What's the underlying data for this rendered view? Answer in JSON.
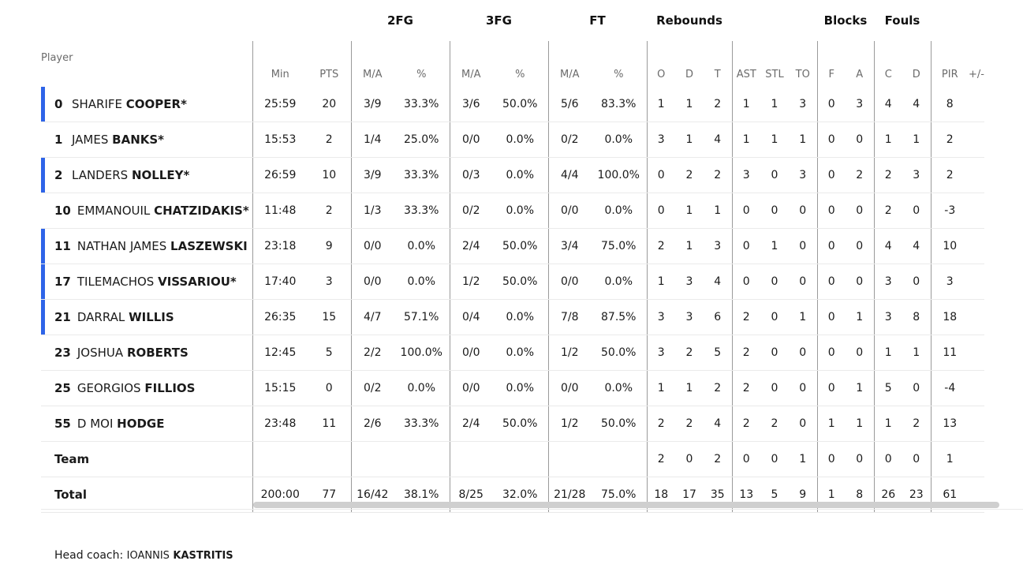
{
  "headers": {
    "player": "Player",
    "groups": {
      "fg2": "2FG",
      "fg3": "3FG",
      "ft": "FT",
      "rebounds": "Rebounds",
      "blocks": "Blocks",
      "fouls": "Fouls"
    },
    "cols": {
      "min": "Min",
      "pts": "PTS",
      "fg2_ma": "M/A",
      "fg2_pct": "%",
      "fg3_ma": "M/A",
      "fg3_pct": "%",
      "ft_ma": "M/A",
      "ft_pct": "%",
      "reb_o": "O",
      "reb_d": "D",
      "reb_t": "T",
      "ast": "AST",
      "stl": "STL",
      "to": "TO",
      "blk_f": "F",
      "blk_a": "A",
      "foul_c": "C",
      "foul_d": "D",
      "pir": "PIR",
      "pm": "+/-"
    }
  },
  "players": [
    {
      "num": "0",
      "first": "SHARIFE",
      "last": "COOPER*",
      "starter": true,
      "min": "25:59",
      "pts": "20",
      "fg2_ma": "3/9",
      "fg2_pct": "33.3%",
      "fg3_ma": "3/6",
      "fg3_pct": "50.0%",
      "ft_ma": "5/6",
      "ft_pct": "83.3%",
      "reb_o": "1",
      "reb_d": "1",
      "reb_t": "2",
      "ast": "1",
      "stl": "1",
      "to": "3",
      "blk_f": "0",
      "blk_a": "3",
      "foul_c": "4",
      "foul_d": "4",
      "pir": "8"
    },
    {
      "num": "1",
      "first": "JAMES",
      "last": "BANKS*",
      "starter": false,
      "min": "15:53",
      "pts": "2",
      "fg2_ma": "1/4",
      "fg2_pct": "25.0%",
      "fg3_ma": "0/0",
      "fg3_pct": "0.0%",
      "ft_ma": "0/2",
      "ft_pct": "0.0%",
      "reb_o": "3",
      "reb_d": "1",
      "reb_t": "4",
      "ast": "1",
      "stl": "1",
      "to": "1",
      "blk_f": "0",
      "blk_a": "0",
      "foul_c": "1",
      "foul_d": "1",
      "pir": "2"
    },
    {
      "num": "2",
      "first": "LANDERS",
      "last": "NOLLEY*",
      "starter": true,
      "min": "26:59",
      "pts": "10",
      "fg2_ma": "3/9",
      "fg2_pct": "33.3%",
      "fg3_ma": "0/3",
      "fg3_pct": "0.0%",
      "ft_ma": "4/4",
      "ft_pct": "100.0%",
      "reb_o": "0",
      "reb_d": "2",
      "reb_t": "2",
      "ast": "3",
      "stl": "0",
      "to": "3",
      "blk_f": "0",
      "blk_a": "2",
      "foul_c": "2",
      "foul_d": "3",
      "pir": "2"
    },
    {
      "num": "10",
      "first": "EMMANOUIL",
      "last": "CHATZIDAKIS*",
      "starter": false,
      "min": "11:48",
      "pts": "2",
      "fg2_ma": "1/3",
      "fg2_pct": "33.3%",
      "fg3_ma": "0/2",
      "fg3_pct": "0.0%",
      "ft_ma": "0/0",
      "ft_pct": "0.0%",
      "reb_o": "0",
      "reb_d": "1",
      "reb_t": "1",
      "ast": "0",
      "stl": "0",
      "to": "0",
      "blk_f": "0",
      "blk_a": "0",
      "foul_c": "2",
      "foul_d": "0",
      "pir": "-3"
    },
    {
      "num": "11",
      "first": "NATHAN JAMES",
      "last": "LASZEWSKI",
      "starter": true,
      "min": "23:18",
      "pts": "9",
      "fg2_ma": "0/0",
      "fg2_pct": "0.0%",
      "fg3_ma": "2/4",
      "fg3_pct": "50.0%",
      "ft_ma": "3/4",
      "ft_pct": "75.0%",
      "reb_o": "2",
      "reb_d": "1",
      "reb_t": "3",
      "ast": "0",
      "stl": "1",
      "to": "0",
      "blk_f": "0",
      "blk_a": "0",
      "foul_c": "4",
      "foul_d": "4",
      "pir": "10"
    },
    {
      "num": "17",
      "first": "TILEMACHOS",
      "last": "VISSARIOU*",
      "starter": true,
      "min": "17:40",
      "pts": "3",
      "fg2_ma": "0/0",
      "fg2_pct": "0.0%",
      "fg3_ma": "1/2",
      "fg3_pct": "50.0%",
      "ft_ma": "0/0",
      "ft_pct": "0.0%",
      "reb_o": "1",
      "reb_d": "3",
      "reb_t": "4",
      "ast": "0",
      "stl": "0",
      "to": "0",
      "blk_f": "0",
      "blk_a": "0",
      "foul_c": "3",
      "foul_d": "0",
      "pir": "3"
    },
    {
      "num": "21",
      "first": "DARRAL",
      "last": "WILLIS",
      "starter": true,
      "min": "26:35",
      "pts": "15",
      "fg2_ma": "4/7",
      "fg2_pct": "57.1%",
      "fg3_ma": "0/4",
      "fg3_pct": "0.0%",
      "ft_ma": "7/8",
      "ft_pct": "87.5%",
      "reb_o": "3",
      "reb_d": "3",
      "reb_t": "6",
      "ast": "2",
      "stl": "0",
      "to": "1",
      "blk_f": "0",
      "blk_a": "1",
      "foul_c": "3",
      "foul_d": "8",
      "pir": "18"
    },
    {
      "num": "23",
      "first": "JOSHUA",
      "last": "ROBERTS",
      "starter": false,
      "min": "12:45",
      "pts": "5",
      "fg2_ma": "2/2",
      "fg2_pct": "100.0%",
      "fg3_ma": "0/0",
      "fg3_pct": "0.0%",
      "ft_ma": "1/2",
      "ft_pct": "50.0%",
      "reb_o": "3",
      "reb_d": "2",
      "reb_t": "5",
      "ast": "2",
      "stl": "0",
      "to": "0",
      "blk_f": "0",
      "blk_a": "0",
      "foul_c": "1",
      "foul_d": "1",
      "pir": "11"
    },
    {
      "num": "25",
      "first": "GEORGIOS",
      "last": "FILLIOS",
      "starter": false,
      "min": "15:15",
      "pts": "0",
      "fg2_ma": "0/2",
      "fg2_pct": "0.0%",
      "fg3_ma": "0/0",
      "fg3_pct": "0.0%",
      "ft_ma": "0/0",
      "ft_pct": "0.0%",
      "reb_o": "1",
      "reb_d": "1",
      "reb_t": "2",
      "ast": "2",
      "stl": "0",
      "to": "0",
      "blk_f": "0",
      "blk_a": "1",
      "foul_c": "5",
      "foul_d": "0",
      "pir": "-4"
    },
    {
      "num": "55",
      "first": "D MOI",
      "last": "HODGE",
      "starter": false,
      "min": "23:48",
      "pts": "11",
      "fg2_ma": "2/6",
      "fg2_pct": "33.3%",
      "fg3_ma": "2/4",
      "fg3_pct": "50.0%",
      "ft_ma": "1/2",
      "ft_pct": "50.0%",
      "reb_o": "2",
      "reb_d": "2",
      "reb_t": "4",
      "ast": "2",
      "stl": "2",
      "to": "0",
      "blk_f": "1",
      "blk_a": "1",
      "foul_c": "1",
      "foul_d": "2",
      "pir": "13"
    }
  ],
  "team": {
    "label": "Team",
    "min": "",
    "pts": "",
    "fg2_ma": "",
    "fg2_pct": "",
    "fg3_ma": "",
    "fg3_pct": "",
    "ft_ma": "",
    "ft_pct": "",
    "reb_o": "2",
    "reb_d": "0",
    "reb_t": "2",
    "ast": "0",
    "stl": "0",
    "to": "1",
    "blk_f": "0",
    "blk_a": "0",
    "foul_c": "0",
    "foul_d": "0",
    "pir": "1"
  },
  "total": {
    "label": "Total",
    "min": "200:00",
    "pts": "77",
    "fg2_ma": "16/42",
    "fg2_pct": "38.1%",
    "fg3_ma": "8/25",
    "fg3_pct": "32.0%",
    "ft_ma": "21/28",
    "ft_pct": "75.0%",
    "reb_o": "18",
    "reb_d": "17",
    "reb_t": "35",
    "ast": "13",
    "stl": "5",
    "to": "9",
    "blk_f": "1",
    "blk_a": "8",
    "foul_c": "26",
    "foul_d": "23",
    "pir": "61"
  },
  "coach": {
    "label": "Head coach:",
    "first": "IOANNIS",
    "last": "KASTRITIS"
  },
  "colors": {
    "starter_accent": "#2e64e8",
    "scrollbar": "#cfcfcf"
  }
}
